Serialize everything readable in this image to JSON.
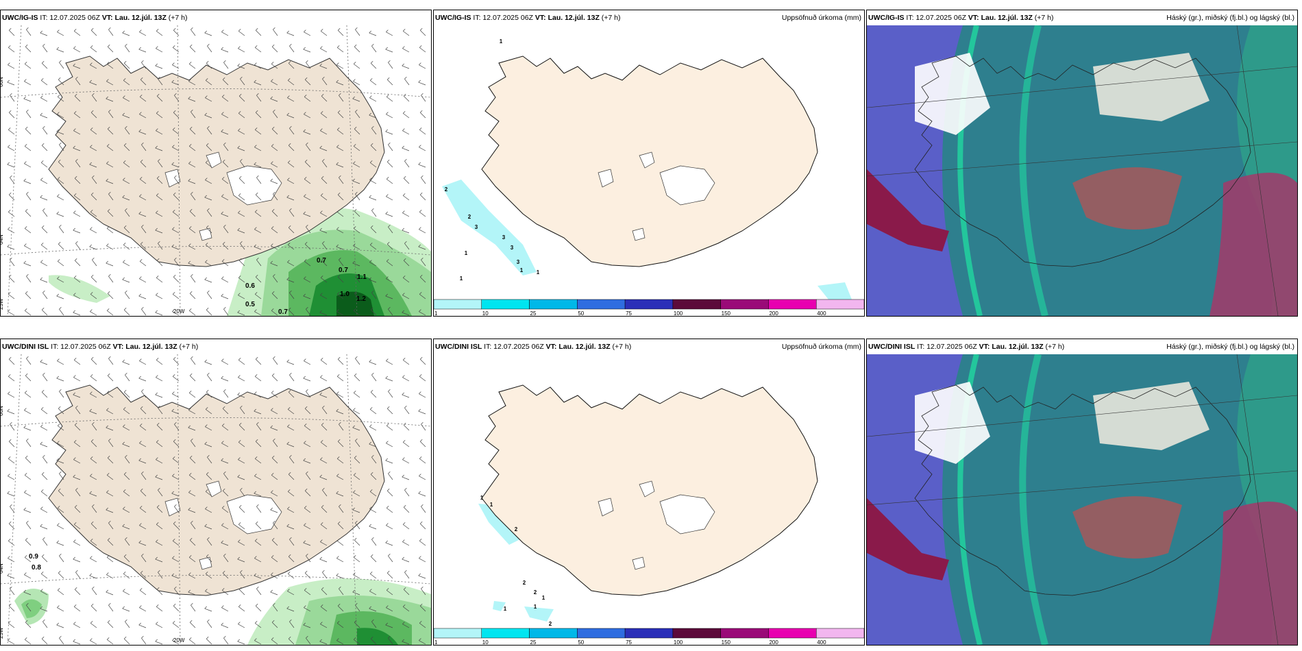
{
  "panels": [
    {
      "model": "UWC/IG-IS",
      "it": "IT: 12.07.2025 06Z",
      "vt_label": "VT:",
      "vt": "Lau. 12.júl. 13Z",
      "lead": "(+7 h)",
      "right": ""
    },
    {
      "model": "UWC/IG-IS",
      "it": "IT: 12.07.2025 06Z",
      "vt_label": "VT:",
      "vt": "Lau. 12.júl. 13Z",
      "lead": "(+7 h)",
      "right": "Uppsöfnuð úrkoma (mm)"
    },
    {
      "model": "UWC/IG-IS",
      "it": "IT: 12.07.2025 06Z",
      "vt_label": "VT:",
      "vt": "Lau. 12.júl. 13Z",
      "lead": "(+7 h)",
      "right": "Háský (gr.), miðský (fj.bl.) og lágský (bl.)"
    },
    {
      "model": "UWC/DINI ISL",
      "it": "IT: 12.07.2025 06Z",
      "vt_label": "VT:",
      "vt": "Lau. 12.júl. 13Z",
      "lead": "(+7 h)",
      "right": ""
    },
    {
      "model": "UWC/DINI ISL",
      "it": "IT: 12.07.2025 06Z",
      "vt_label": "VT:",
      "vt": "Lau. 12.júl. 13Z",
      "lead": "(+7 h)",
      "right": "Uppsöfnuð úrkoma (mm)"
    },
    {
      "model": "UWC/DINI ISL",
      "it": "IT: 12.07.2025 06Z",
      "vt_label": "VT:",
      "vt": "Lau. 12.júl. 13Z",
      "lead": "(+7 h)",
      "right": "Háský (gr.), miðský (fj.bl.) og lágský (bl.)"
    }
  ],
  "graticule": {
    "lat_66": "66N",
    "lat_64": "64N",
    "lon_25": "25W",
    "lon_20": "20W",
    "lon_9r": "66N"
  },
  "wind_labels_top": [
    "0.7",
    "0.7",
    "0.6",
    "0.5",
    "0.7",
    "1.0",
    "1.2",
    "1.1"
  ],
  "wind_labels_bottom": [
    "0.9",
    "0.8"
  ],
  "precip_labels_top": [
    "1",
    "2",
    "2",
    "3",
    "3",
    "3",
    "3",
    "1",
    "1",
    "1",
    "1"
  ],
  "precip_labels_bottom": [
    "1",
    "1",
    "2",
    "2",
    "2",
    "1",
    "1",
    "2",
    "1"
  ],
  "colorbar": {
    "ticks": [
      "1",
      "10",
      "25",
      "50",
      "75",
      "100",
      "150",
      "200",
      "400"
    ],
    "colors": [
      "#b3f5f8",
      "#00e5f0",
      "#00b8e8",
      "#2f6de0",
      "#2b2fb8",
      "#5c0a3a",
      "#9a0a78",
      "#e800b0",
      "#f2b6ef"
    ]
  }
}
